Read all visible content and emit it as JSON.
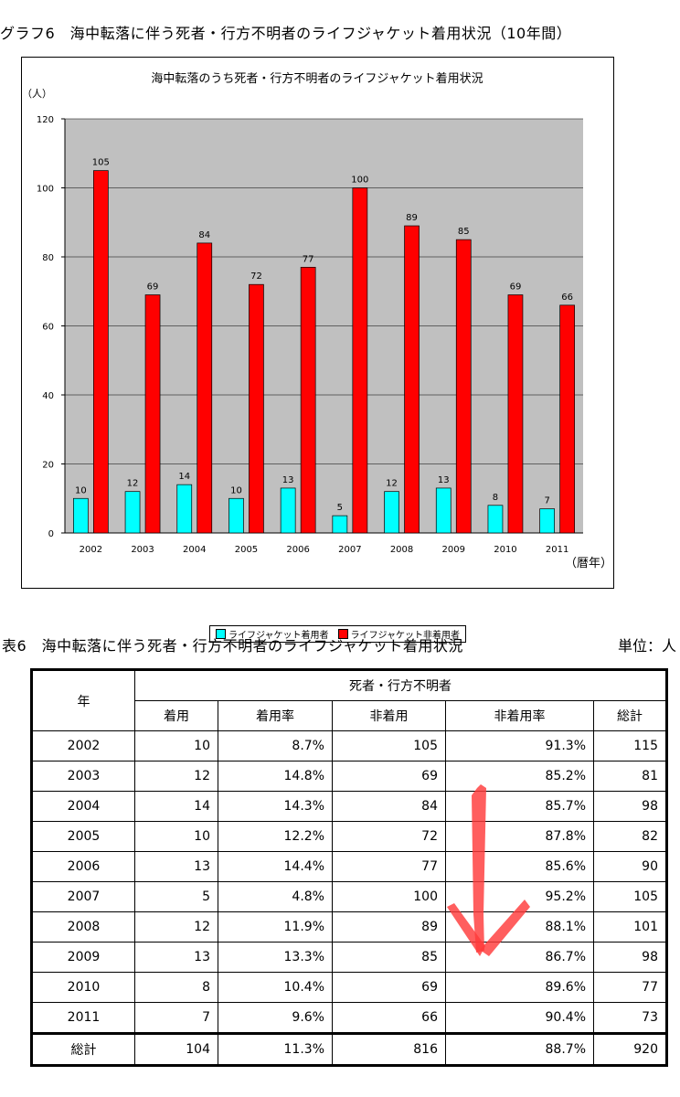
{
  "figure_heading": "グラフ6　海中転落に伴う死者・行方不明者のライフジャケット着用状況（10年間）",
  "chart_data": {
    "type": "bar",
    "title": "海中転落のうち死者・行方不明者のライフジャケット着用状況",
    "ylabel": "（人）",
    "xlabel": "（暦年）",
    "ylim": [
      0,
      120
    ],
    "yticks": [
      0,
      20,
      40,
      60,
      80,
      100,
      120
    ],
    "grid": true,
    "legend_position": "bottom",
    "categories": [
      "2002",
      "2003",
      "2004",
      "2005",
      "2006",
      "2007",
      "2008",
      "2009",
      "2010",
      "2011"
    ],
    "series": [
      {
        "name": "ライフジャケット着用者",
        "color": "#00ffff",
        "values": [
          10,
          12,
          14,
          10,
          13,
          5,
          12,
          13,
          8,
          7
        ]
      },
      {
        "name": "ライフジャケット非着用者",
        "color": "#ff0000",
        "values": [
          105,
          69,
          84,
          72,
          77,
          100,
          89,
          85,
          69,
          66
        ]
      }
    ],
    "plot_background": "#c0c0c0"
  },
  "table": {
    "heading": "表6　海中転落に伴う死者・行方不明者のライフジャケット着用状況",
    "unit": "単位：人",
    "year_header": "年",
    "group_header": "死者・行方不明者",
    "columns": [
      "着用",
      "着用率",
      "非着用",
      "非着用率",
      "総計"
    ],
    "rows": [
      [
        "2002",
        "10",
        "8.7%",
        "105",
        "91.3%",
        "115"
      ],
      [
        "2003",
        "12",
        "14.8%",
        "69",
        "85.2%",
        "81"
      ],
      [
        "2004",
        "14",
        "14.3%",
        "84",
        "85.7%",
        "98"
      ],
      [
        "2005",
        "10",
        "12.2%",
        "72",
        "87.8%",
        "82"
      ],
      [
        "2006",
        "13",
        "14.4%",
        "77",
        "85.6%",
        "90"
      ],
      [
        "2007",
        "5",
        "4.8%",
        "100",
        "95.2%",
        "105"
      ],
      [
        "2008",
        "12",
        "11.9%",
        "89",
        "88.1%",
        "101"
      ],
      [
        "2009",
        "13",
        "13.3%",
        "85",
        "86.7%",
        "98"
      ],
      [
        "2010",
        "8",
        "10.4%",
        "69",
        "89.6%",
        "77"
      ],
      [
        "2011",
        "7",
        "9.6%",
        "66",
        "90.4%",
        "73"
      ]
    ],
    "total_row": [
      "総計",
      "104",
      "11.3%",
      "816",
      "88.7%",
      "920"
    ]
  },
  "annotation": {
    "icon": "hand-drawn-down-arrow-icon",
    "color": "#ff3b3b"
  }
}
